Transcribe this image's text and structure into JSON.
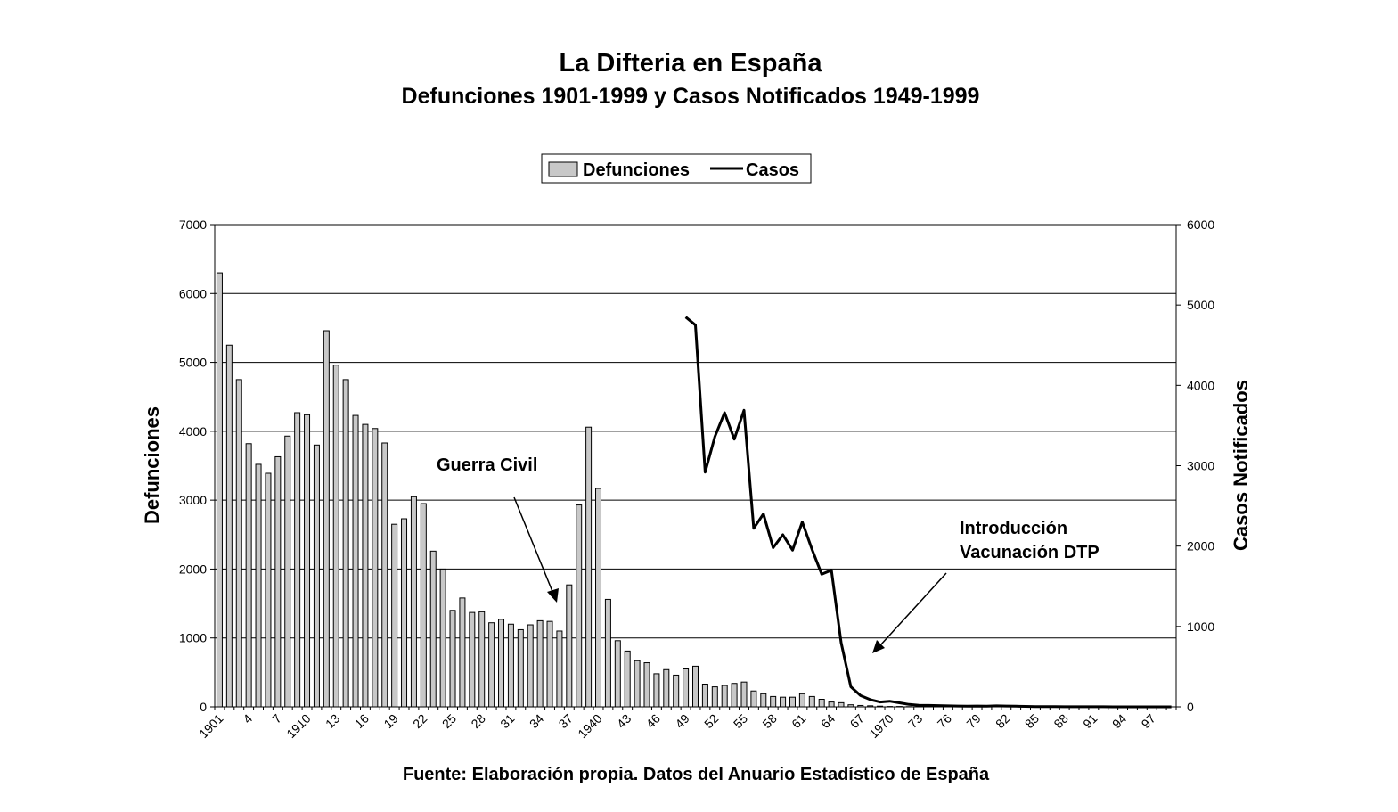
{
  "chart_data": {
    "type": "bar",
    "title": "La Difteria en España",
    "subtitle": "Defunciones 1901-1999 y Casos Notificados 1949-1999",
    "source": "Fuente: Elaboración propia. Datos del Anuario Estadístico de España",
    "ylabel": "Defunciones",
    "y2label": "Casos Notificados",
    "ylim": [
      0,
      7000
    ],
    "y2lim": [
      0,
      6000
    ],
    "yticks": [
      0,
      1000,
      2000,
      3000,
      4000,
      5000,
      6000,
      7000
    ],
    "y2ticks": [
      0,
      1000,
      2000,
      3000,
      4000,
      5000,
      6000
    ],
    "grid": true,
    "legend_placement": "top-center",
    "x": [
      1901,
      1902,
      1903,
      1904,
      1905,
      1906,
      1907,
      1908,
      1909,
      1910,
      1911,
      1912,
      1913,
      1914,
      1915,
      1916,
      1917,
      1918,
      1919,
      1920,
      1921,
      1922,
      1923,
      1924,
      1925,
      1926,
      1927,
      1928,
      1929,
      1930,
      1931,
      1932,
      1933,
      1934,
      1935,
      1936,
      1937,
      1938,
      1939,
      1940,
      1941,
      1942,
      1943,
      1944,
      1945,
      1946,
      1947,
      1948,
      1949,
      1950,
      1951,
      1952,
      1953,
      1954,
      1955,
      1956,
      1957,
      1958,
      1959,
      1960,
      1961,
      1962,
      1963,
      1964,
      1965,
      1966,
      1967,
      1968,
      1969,
      1970,
      1971,
      1972,
      1973,
      1974,
      1975,
      1976,
      1977,
      1978,
      1979,
      1980,
      1981,
      1982,
      1983,
      1984,
      1985,
      1986,
      1987,
      1988,
      1989,
      1990,
      1991,
      1992,
      1993,
      1994,
      1995,
      1996,
      1997,
      1998,
      1999
    ],
    "xtick_labels": [
      "1901",
      "4",
      "7",
      "1910",
      "13",
      "16",
      "19",
      "22",
      "25",
      "28",
      "31",
      "34",
      "37",
      "1940",
      "43",
      "46",
      "49",
      "52",
      "55",
      "58",
      "61",
      "64",
      "67",
      "1970",
      "73",
      "76",
      "79",
      "82",
      "85",
      "88",
      "91",
      "94",
      "97"
    ],
    "series": [
      {
        "name": "Defunciones",
        "kind": "bar",
        "axis": "left",
        "color": "#c8c8c8",
        "values": [
          6300,
          5250,
          4750,
          3820,
          3520,
          3390,
          3630,
          3930,
          4270,
          4240,
          3800,
          5460,
          4960,
          4750,
          4230,
          4100,
          4040,
          3830,
          2650,
          2730,
          3050,
          2950,
          2260,
          2000,
          1400,
          1580,
          1370,
          1380,
          1220,
          1270,
          1200,
          1120,
          1190,
          1250,
          1240,
          1100,
          1770,
          2930,
          4060,
          3170,
          1560,
          960,
          810,
          670,
          640,
          480,
          540,
          460,
          550,
          590,
          330,
          290,
          310,
          340,
          360,
          230,
          190,
          150,
          140,
          140,
          190,
          150,
          110,
          70,
          60,
          30,
          20,
          15,
          10,
          5,
          5,
          3,
          3,
          2,
          2,
          2,
          1,
          1,
          1,
          1,
          1,
          1,
          1,
          1,
          0,
          0,
          0,
          0,
          0,
          0,
          0,
          0,
          0,
          0,
          0,
          0,
          0,
          0,
          0
        ]
      },
      {
        "name": "Casos",
        "kind": "line",
        "axis": "right",
        "color": "#000000",
        "x": [
          1949,
          1950,
          1951,
          1952,
          1953,
          1954,
          1955,
          1956,
          1957,
          1958,
          1959,
          1960,
          1961,
          1962,
          1963,
          1964,
          1965,
          1966,
          1967,
          1968,
          1969,
          1970,
          1971,
          1972,
          1973,
          1974,
          1975,
          1976,
          1977,
          1978,
          1979,
          1980,
          1981,
          1982,
          1983,
          1984,
          1985,
          1986,
          1987,
          1988,
          1989,
          1990,
          1991,
          1992,
          1993,
          1994,
          1995,
          1996,
          1997,
          1998,
          1999
        ],
        "values": [
          4850,
          4750,
          2920,
          3360,
          3660,
          3330,
          3690,
          2220,
          2400,
          1980,
          2140,
          1950,
          2300,
          1960,
          1650,
          1700,
          800,
          250,
          140,
          90,
          60,
          70,
          50,
          30,
          20,
          18,
          15,
          12,
          10,
          8,
          10,
          8,
          12,
          10,
          8,
          5,
          3,
          2,
          2,
          1,
          1,
          1,
          1,
          1,
          0,
          0,
          0,
          0,
          0,
          0,
          0
        ]
      }
    ],
    "annotations": [
      {
        "text": "Guerra Civil",
        "points_to_x": 1937
      },
      {
        "text_lines": [
          "Introducción",
          "Vacunación DTP"
        ],
        "points_to_x": 1968
      }
    ]
  }
}
